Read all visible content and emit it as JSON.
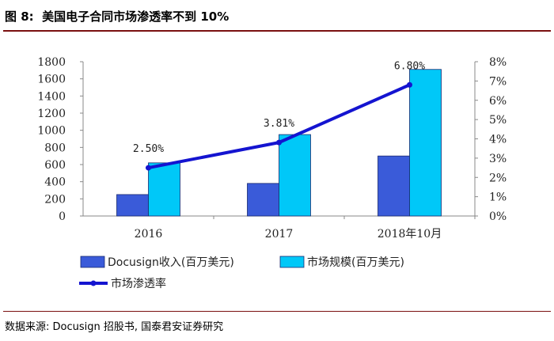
{
  "figure_label": "图 8:",
  "figure_title": "美国电子合同市场渗透率不到 10%",
  "source_text": "数据来源: Docusign 招股书, 国泰君安证券研究",
  "colors": {
    "docusign": "#3a5bd9",
    "market": "#00c8f8",
    "line": "#1414d0"
  },
  "chart_data": {
    "type": "bar",
    "categories": [
      "2016",
      "2017",
      "2018年10月"
    ],
    "series": [
      {
        "name": "Docusign收入(百万美元)",
        "values": [
          250,
          380,
          700
        ],
        "axis": "left"
      },
      {
        "name": "市场规模(百万美元)",
        "values": [
          620,
          950,
          1710
        ],
        "axis": "left"
      },
      {
        "name": "市场渗透率",
        "type": "line",
        "values": [
          2.5,
          3.81,
          6.8
        ],
        "axis": "right"
      }
    ],
    "data_labels": [
      "2.50%",
      "3.81%",
      "6.80%"
    ],
    "y_left": {
      "min": 0,
      "max": 1800,
      "step": 200,
      "ticks": [
        "0",
        "200",
        "400",
        "600",
        "800",
        "1000",
        "1200",
        "1400",
        "1600",
        "1800"
      ]
    },
    "y_right": {
      "min": 0,
      "max": 8,
      "step": 1,
      "ticks": [
        "0%",
        "1%",
        "2%",
        "3%",
        "4%",
        "5%",
        "6%",
        "7%",
        "8%"
      ]
    },
    "legend": [
      "Docusign收入(百万美元)",
      "市场规模(百万美元)",
      "市场渗透率"
    ],
    "legend_position": "bottom",
    "grid": false
  }
}
